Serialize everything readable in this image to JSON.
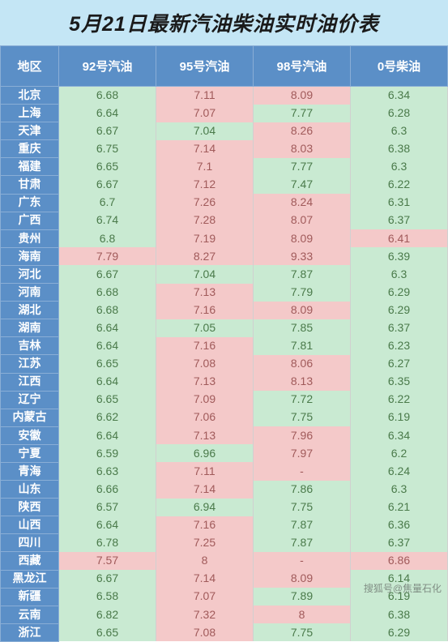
{
  "title": "5月21日最新汽油柴油实时油价表",
  "columns": [
    "地区",
    "92号汽油",
    "95号汽油",
    "98号汽油",
    "0号柴油"
  ],
  "watermark": "搜狐号@焦量石化",
  "colors": {
    "title_bg": "#c4e6f5",
    "header_bg": "#5b8fc7",
    "header_fg": "#ffffff",
    "green_bg": "#c9ead2",
    "green_fg": "#4a7a4a",
    "pink_bg": "#f4c9c9",
    "pink_fg": "#a05a5a"
  },
  "rows": [
    {
      "region": "北京",
      "v": [
        [
          "6.68",
          "g"
        ],
        [
          "7.11",
          "p"
        ],
        [
          "8.09",
          "p"
        ],
        [
          "6.34",
          "g"
        ]
      ]
    },
    {
      "region": "上海",
      "v": [
        [
          "6.64",
          "g"
        ],
        [
          "7.07",
          "p"
        ],
        [
          "7.77",
          "g"
        ],
        [
          "6.28",
          "g"
        ]
      ]
    },
    {
      "region": "天津",
      "v": [
        [
          "6.67",
          "g"
        ],
        [
          "7.04",
          "g"
        ],
        [
          "8.26",
          "p"
        ],
        [
          "6.3",
          "g"
        ]
      ]
    },
    {
      "region": "重庆",
      "v": [
        [
          "6.75",
          "g"
        ],
        [
          "7.14",
          "p"
        ],
        [
          "8.03",
          "p"
        ],
        [
          "6.38",
          "g"
        ]
      ]
    },
    {
      "region": "福建",
      "v": [
        [
          "6.65",
          "g"
        ],
        [
          "7.1",
          "p"
        ],
        [
          "7.77",
          "g"
        ],
        [
          "6.3",
          "g"
        ]
      ]
    },
    {
      "region": "甘肃",
      "v": [
        [
          "6.67",
          "g"
        ],
        [
          "7.12",
          "p"
        ],
        [
          "7.47",
          "g"
        ],
        [
          "6.22",
          "g"
        ]
      ]
    },
    {
      "region": "广东",
      "v": [
        [
          "6.7",
          "g"
        ],
        [
          "7.26",
          "p"
        ],
        [
          "8.24",
          "p"
        ],
        [
          "6.31",
          "g"
        ]
      ]
    },
    {
      "region": "广西",
      "v": [
        [
          "6.74",
          "g"
        ],
        [
          "7.28",
          "p"
        ],
        [
          "8.07",
          "p"
        ],
        [
          "6.37",
          "g"
        ]
      ]
    },
    {
      "region": "贵州",
      "v": [
        [
          "6.8",
          "g"
        ],
        [
          "7.19",
          "p"
        ],
        [
          "8.09",
          "p"
        ],
        [
          "6.41",
          "p"
        ]
      ]
    },
    {
      "region": "海南",
      "v": [
        [
          "7.79",
          "p"
        ],
        [
          "8.27",
          "p"
        ],
        [
          "9.33",
          "p"
        ],
        [
          "6.39",
          "g"
        ]
      ]
    },
    {
      "region": "河北",
      "v": [
        [
          "6.67",
          "g"
        ],
        [
          "7.04",
          "g"
        ],
        [
          "7.87",
          "g"
        ],
        [
          "6.3",
          "g"
        ]
      ]
    },
    {
      "region": "河南",
      "v": [
        [
          "6.68",
          "g"
        ],
        [
          "7.13",
          "p"
        ],
        [
          "7.79",
          "g"
        ],
        [
          "6.29",
          "g"
        ]
      ]
    },
    {
      "region": "湖北",
      "v": [
        [
          "6.68",
          "g"
        ],
        [
          "7.16",
          "p"
        ],
        [
          "8.09",
          "p"
        ],
        [
          "6.29",
          "g"
        ]
      ]
    },
    {
      "region": "湖南",
      "v": [
        [
          "6.64",
          "g"
        ],
        [
          "7.05",
          "g"
        ],
        [
          "7.85",
          "g"
        ],
        [
          "6.37",
          "g"
        ]
      ]
    },
    {
      "region": "吉林",
      "v": [
        [
          "6.64",
          "g"
        ],
        [
          "7.16",
          "p"
        ],
        [
          "7.81",
          "g"
        ],
        [
          "6.23",
          "g"
        ]
      ]
    },
    {
      "region": "江苏",
      "v": [
        [
          "6.65",
          "g"
        ],
        [
          "7.08",
          "p"
        ],
        [
          "8.06",
          "p"
        ],
        [
          "6.27",
          "g"
        ]
      ]
    },
    {
      "region": "江西",
      "v": [
        [
          "6.64",
          "g"
        ],
        [
          "7.13",
          "p"
        ],
        [
          "8.13",
          "p"
        ],
        [
          "6.35",
          "g"
        ]
      ]
    },
    {
      "region": "辽宁",
      "v": [
        [
          "6.65",
          "g"
        ],
        [
          "7.09",
          "p"
        ],
        [
          "7.72",
          "g"
        ],
        [
          "6.22",
          "g"
        ]
      ]
    },
    {
      "region": "内蒙古",
      "v": [
        [
          "6.62",
          "g"
        ],
        [
          "7.06",
          "p"
        ],
        [
          "7.75",
          "g"
        ],
        [
          "6.19",
          "g"
        ]
      ]
    },
    {
      "region": "安徽",
      "v": [
        [
          "6.64",
          "g"
        ],
        [
          "7.13",
          "p"
        ],
        [
          "7.96",
          "p"
        ],
        [
          "6.34",
          "g"
        ]
      ]
    },
    {
      "region": "宁夏",
      "v": [
        [
          "6.59",
          "g"
        ],
        [
          "6.96",
          "g"
        ],
        [
          "7.97",
          "p"
        ],
        [
          "6.2",
          "g"
        ]
      ]
    },
    {
      "region": "青海",
      "v": [
        [
          "6.63",
          "g"
        ],
        [
          "7.11",
          "p"
        ],
        [
          "-",
          "p"
        ],
        [
          "6.24",
          "g"
        ]
      ]
    },
    {
      "region": "山东",
      "v": [
        [
          "6.66",
          "g"
        ],
        [
          "7.14",
          "p"
        ],
        [
          "7.86",
          "g"
        ],
        [
          "6.3",
          "g"
        ]
      ]
    },
    {
      "region": "陕西",
      "v": [
        [
          "6.57",
          "g"
        ],
        [
          "6.94",
          "g"
        ],
        [
          "7.75",
          "g"
        ],
        [
          "6.21",
          "g"
        ]
      ]
    },
    {
      "region": "山西",
      "v": [
        [
          "6.64",
          "g"
        ],
        [
          "7.16",
          "p"
        ],
        [
          "7.87",
          "g"
        ],
        [
          "6.36",
          "g"
        ]
      ]
    },
    {
      "region": "四川",
      "v": [
        [
          "6.78",
          "g"
        ],
        [
          "7.25",
          "p"
        ],
        [
          "7.87",
          "g"
        ],
        [
          "6.37",
          "g"
        ]
      ]
    },
    {
      "region": "西藏",
      "v": [
        [
          "7.57",
          "p"
        ],
        [
          "8",
          "p"
        ],
        [
          "-",
          "p"
        ],
        [
          "6.86",
          "p"
        ]
      ]
    },
    {
      "region": "黑龙江",
      "v": [
        [
          "6.67",
          "g"
        ],
        [
          "7.14",
          "p"
        ],
        [
          "8.09",
          "p"
        ],
        [
          "6.14",
          "g"
        ]
      ]
    },
    {
      "region": "新疆",
      "v": [
        [
          "6.58",
          "g"
        ],
        [
          "7.07",
          "p"
        ],
        [
          "7.89",
          "g"
        ],
        [
          "6.19",
          "g"
        ]
      ]
    },
    {
      "region": "云南",
      "v": [
        [
          "6.82",
          "g"
        ],
        [
          "7.32",
          "p"
        ],
        [
          "8",
          "p"
        ],
        [
          "6.38",
          "g"
        ]
      ]
    },
    {
      "region": "浙江",
      "v": [
        [
          "6.65",
          "g"
        ],
        [
          "7.08",
          "p"
        ],
        [
          "7.75",
          "g"
        ],
        [
          "6.29",
          "g"
        ]
      ]
    }
  ]
}
